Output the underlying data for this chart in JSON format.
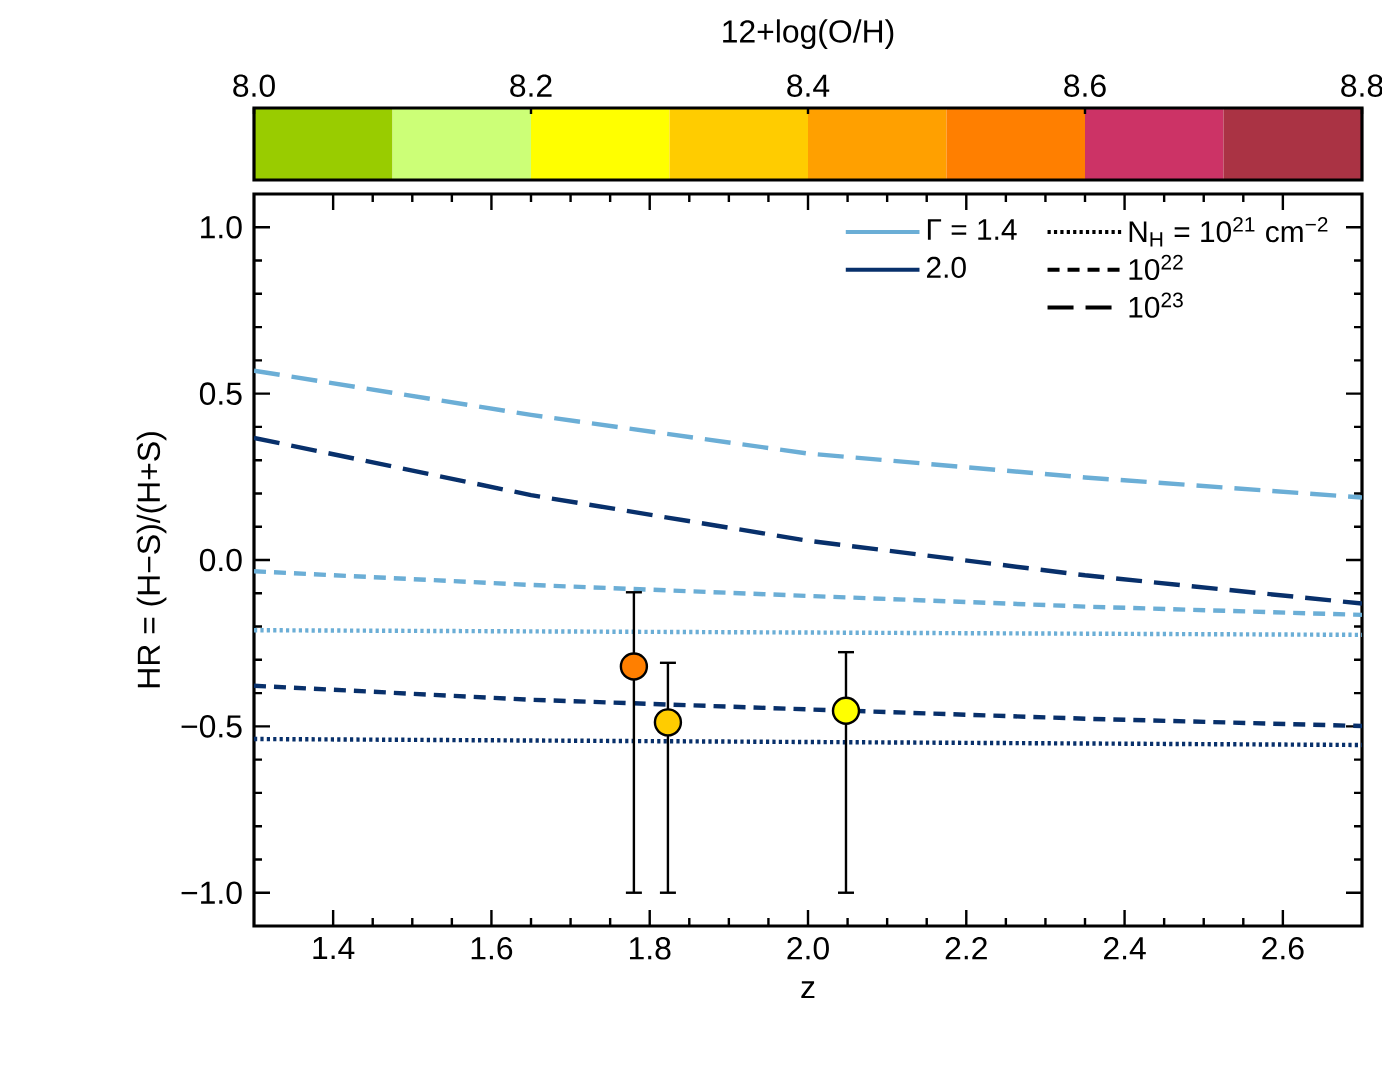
{
  "chart_data": {
    "type": "line",
    "xlabel": "z",
    "ylabel": "HR = (H−S)/(H+S)",
    "clabel": "12+log(O/H)",
    "xlim": [
      1.3,
      2.7
    ],
    "xticks": [
      1.4,
      1.6,
      1.8,
      {
        "value": 2,
        "label": "2.0"
      },
      2.2,
      2.4,
      2.6
    ],
    "ylim": [
      -1.1,
      1.1
    ],
    "yticks": [
      {
        "value": -1,
        "label": "−1.0"
      },
      {
        "value": -0.5,
        "label": "−0.5"
      },
      {
        "value": 0,
        "label": "0.0"
      },
      0.5,
      {
        "value": 1,
        "label": "1.0"
      }
    ],
    "clim": [
      8.0,
      8.8
    ],
    "cticks": [
      {
        "value": 8,
        "label": "8.0"
      },
      8.2,
      8.4,
      8.6,
      8.8
    ],
    "annotations": [
      "Γ = 1.4",
      "2.0",
      "N$_{H}$ = 10$^{21}$ cm$^{−2}$",
      "10$^{22}$",
      "10$^{23}$"
    ],
    "series": [
      {
        "color": "#6baed6",
        "line_style": "dotted",
        "x": [
          1.3,
          2.7
        ],
        "values": [
          -0.211,
          -0.225
        ]
      },
      {
        "color": "#6baed6",
        "line_style": "dashed",
        "x": [
          1.3,
          1.65,
          2.0,
          2.35,
          2.7
        ],
        "values": [
          -0.034,
          -0.075,
          -0.108,
          -0.14,
          -0.165
        ]
      },
      {
        "color": "#6baed6",
        "line_style": "long dashed",
        "x": [
          1.3,
          1.65,
          2.0,
          2.35,
          2.7
        ],
        "values": [
          0.569,
          0.436,
          0.32,
          0.248,
          0.188
        ]
      },
      {
        "color": "#08306b",
        "line_style": "dotted",
        "x": [
          1.3,
          2.7
        ],
        "values": [
          -0.538,
          -0.556
        ]
      },
      {
        "color": "#08306b",
        "line_style": "dashed",
        "x": [
          1.3,
          1.65,
          2.0,
          2.35,
          2.7
        ],
        "values": [
          -0.378,
          -0.42,
          -0.449,
          -0.477,
          -0.499
        ]
      },
      {
        "color": "#08306b",
        "line_style": "long dashed",
        "x": [
          1.3,
          1.65,
          2.0,
          2.35,
          2.7
        ],
        "values": [
          0.367,
          0.195,
          0.058,
          -0.046,
          -0.131
        ]
      },
      {
        "type": "scatter",
        "marker": "circle",
        "x": [
          1.78,
          1.823,
          2.048
        ],
        "values": [
          -0.32,
          -0.488,
          -0.453
        ],
        "colors": [
          "#ff7f00",
          "#ffcc00",
          "#ffff00"
        ],
        "errors": [
          [
            -1.0,
            -0.097
          ],
          [
            -1.0,
            -0.309
          ],
          [
            -1.0,
            -0.277
          ]
        ]
      }
    ]
  }
}
